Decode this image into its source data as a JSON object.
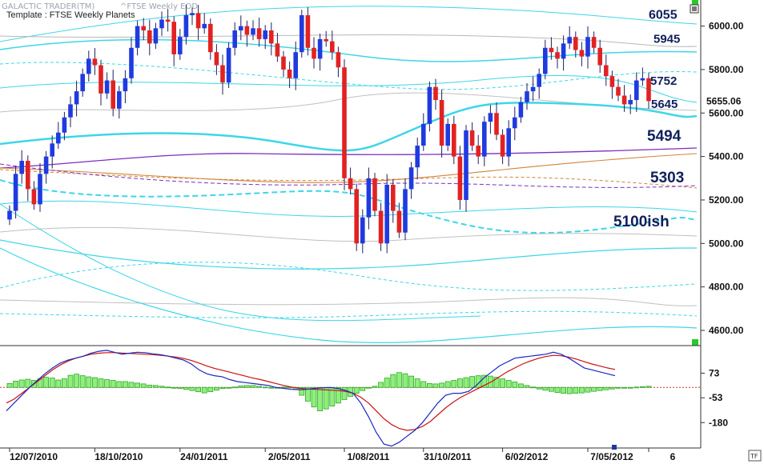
{
  "header": {
    "app_title": "GALACTIC TRADER(TM)",
    "symbol": "^FTSE Weekly EOD",
    "template": "Template : FTSE Weekly Planets"
  },
  "chart_data": {
    "type": "candlestick",
    "price_axis": {
      "ylim": [
        4530,
        6120
      ],
      "ticks": [
        "6000.00",
        "5800.00",
        "5600.00",
        "5400.00",
        "5200.00",
        "5000.00",
        "4800.00",
        "4600.00"
      ],
      "tick_values": [
        6000,
        5800,
        5600,
        5400,
        5200,
        5000,
        4800,
        4600
      ]
    },
    "last_price": "5655.06",
    "last_price_value": 5655.06,
    "x_ticks": [
      "12/07/2010",
      "18/10/2010",
      "24/01/2011",
      "2/05/2011",
      "1/08/2011",
      "31/10/2011",
      "6/02/2012",
      "7/05/2012",
      "6"
    ],
    "x_tick_index": [
      0,
      14,
      28,
      42,
      55,
      68,
      81,
      95,
      105
    ],
    "level_labels": [
      {
        "text": "6055",
        "value": 6055
      },
      {
        "text": "5945",
        "value": 5945
      },
      {
        "text": "5752",
        "value": 5752
      },
      {
        "text": "5645",
        "value": 5645
      },
      {
        "text": "5494",
        "value": 5494
      },
      {
        "text": "5303",
        "value": 5303
      },
      {
        "text": "5100ish",
        "value": 5100
      }
    ],
    "weekly_closes": [
      5150,
      5320,
      5380,
      5250,
      5180,
      5320,
      5400,
      5460,
      5510,
      5580,
      5640,
      5700,
      5780,
      5850,
      5820,
      5690,
      5750,
      5620,
      5700,
      5760,
      5900,
      6000,
      5980,
      5920,
      5990,
      6030,
      6020,
      5870,
      5950,
      6050,
      6060,
      5990,
      6010,
      5880,
      5820,
      5740,
      5900,
      5980,
      6000,
      5960,
      5990,
      5940,
      5980,
      5920,
      5860,
      5800,
      5760,
      5880,
      6050,
      5900,
      5850,
      5940,
      5930,
      5880,
      5810,
      5300,
      5250,
      5000,
      5120,
      5300,
      5150,
      5000,
      5270,
      5150,
      5050,
      5250,
      5350,
      5450,
      5550,
      5720,
      5660,
      5450,
      5550,
      5400,
      5200,
      5520,
      5450,
      5400,
      5560,
      5600,
      5500,
      5400,
      5530,
      5580,
      5650,
      5700,
      5720,
      5780,
      5900,
      5880,
      5850,
      5920,
      5950,
      5890,
      5860,
      5950,
      5900,
      5820,
      5770,
      5720,
      5680,
      5640,
      5660,
      5750,
      5760,
      5655
    ],
    "oscillator": {
      "ticks": [
        "73",
        "-53",
        "-180"
      ],
      "tick_values": [
        73,
        -53,
        -180
      ],
      "ylim": [
        -310,
        210
      ],
      "histogram": [
        20,
        32,
        38,
        42,
        36,
        44,
        52,
        48,
        38,
        44,
        62,
        68,
        60,
        54,
        50,
        44,
        40,
        36,
        30,
        30,
        26,
        22,
        18,
        12,
        10,
        6,
        2,
        0,
        -6,
        -10,
        -16,
        -22,
        -28,
        -22,
        -14,
        -6,
        -2,
        2,
        8,
        10,
        10,
        6,
        2,
        0,
        0,
        2,
        2,
        -10,
        -40,
        -70,
        -100,
        -120,
        -110,
        -95,
        -80,
        -62,
        -46,
        -30,
        -16,
        -4,
        6,
        26,
        48,
        66,
        76,
        70,
        58,
        44,
        30,
        20,
        18,
        22,
        30,
        36,
        44,
        50,
        56,
        60,
        62,
        58,
        52,
        44,
        36,
        28,
        18,
        10,
        2,
        -8,
        -14,
        -20,
        -26,
        -30,
        -32,
        -30,
        -28,
        -24,
        -20,
        -16,
        -12,
        -8,
        -4,
        -2,
        0,
        2,
        4,
        6
      ],
      "fast_line": [
        -120,
        -80,
        -40,
        0,
        35,
        70,
        100,
        125,
        140,
        150,
        160,
        175,
        185,
        190,
        180,
        170,
        175,
        180,
        178,
        172,
        168,
        160,
        150,
        140,
        120,
        90,
        70,
        60,
        55,
        40,
        30,
        25,
        20,
        15,
        10,
        0,
        -5,
        -10,
        -12,
        -10,
        -5,
        -2,
        0,
        -5,
        -15,
        -30,
        -80,
        -150,
        -230,
        -290,
        -300,
        -280,
        -250,
        -220,
        -180,
        -130,
        -80,
        -40,
        -30,
        -30,
        -20,
        10,
        50,
        80,
        110,
        130,
        150,
        155,
        160,
        165,
        170,
        180,
        170,
        150,
        125,
        100,
        90,
        80,
        70,
        60
      ],
      "slow_line": [
        -80,
        -60,
        -30,
        0,
        30,
        60,
        90,
        115,
        135,
        150,
        160,
        170,
        175,
        178,
        178,
        176,
        174,
        172,
        170,
        168,
        164,
        160,
        155,
        148,
        138,
        125,
        110,
        98,
        88,
        78,
        68,
        58,
        48,
        40,
        30,
        20,
        10,
        2,
        -4,
        -8,
        -10,
        -12,
        -14,
        -16,
        -20,
        -30,
        -50,
        -80,
        -120,
        -160,
        -190,
        -210,
        -220,
        -215,
        -200,
        -175,
        -140,
        -105,
        -75,
        -50,
        -30,
        -10,
        10,
        30,
        55,
        80,
        100,
        120,
        135,
        148,
        158,
        164,
        162,
        155,
        145,
        132,
        120,
        110,
        100,
        92
      ]
    }
  }
}
